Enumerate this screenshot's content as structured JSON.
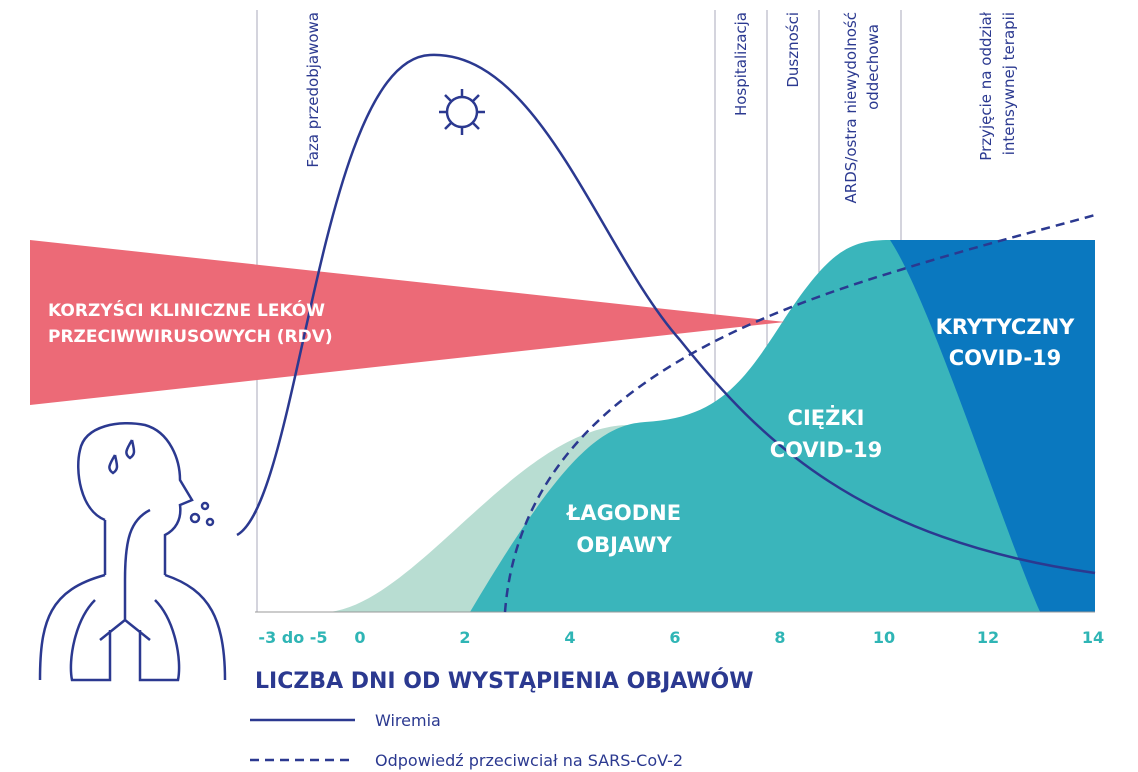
{
  "phase_labels": [
    [
      "Faza przedobjawowa"
    ],
    [
      "Hospitalizacja"
    ],
    [
      "Duszności"
    ],
    [
      "ARDS/ostra niewydolność",
      "oddechowa"
    ],
    [
      "Przyjęcie na oddział",
      "intensywnej terapii"
    ]
  ],
  "benefit_label": [
    "KORZYŚCI KLINICZNE LEKÓW",
    "PRZECIWWIRUSOWYCH (RDV)"
  ],
  "region_labels": [
    [
      "ŁAGODNE",
      "OBJAWY"
    ],
    [
      "CIĘŻKI",
      "COVID-19"
    ],
    [
      "KRYTYCZNY",
      "COVID-19"
    ]
  ],
  "x_axis": {
    "title": "LICZBA DNI OD WYSTĄPIENIA OBJAWÓW",
    "tick_labels": [
      "-3 do -5",
      "0",
      "2",
      "4",
      "6",
      "8",
      "10",
      "12",
      "14"
    ]
  },
  "legend": [
    "Wiremia",
    "Odpowiedź przeciwciał na SARS-CoV-2"
  ]
}
